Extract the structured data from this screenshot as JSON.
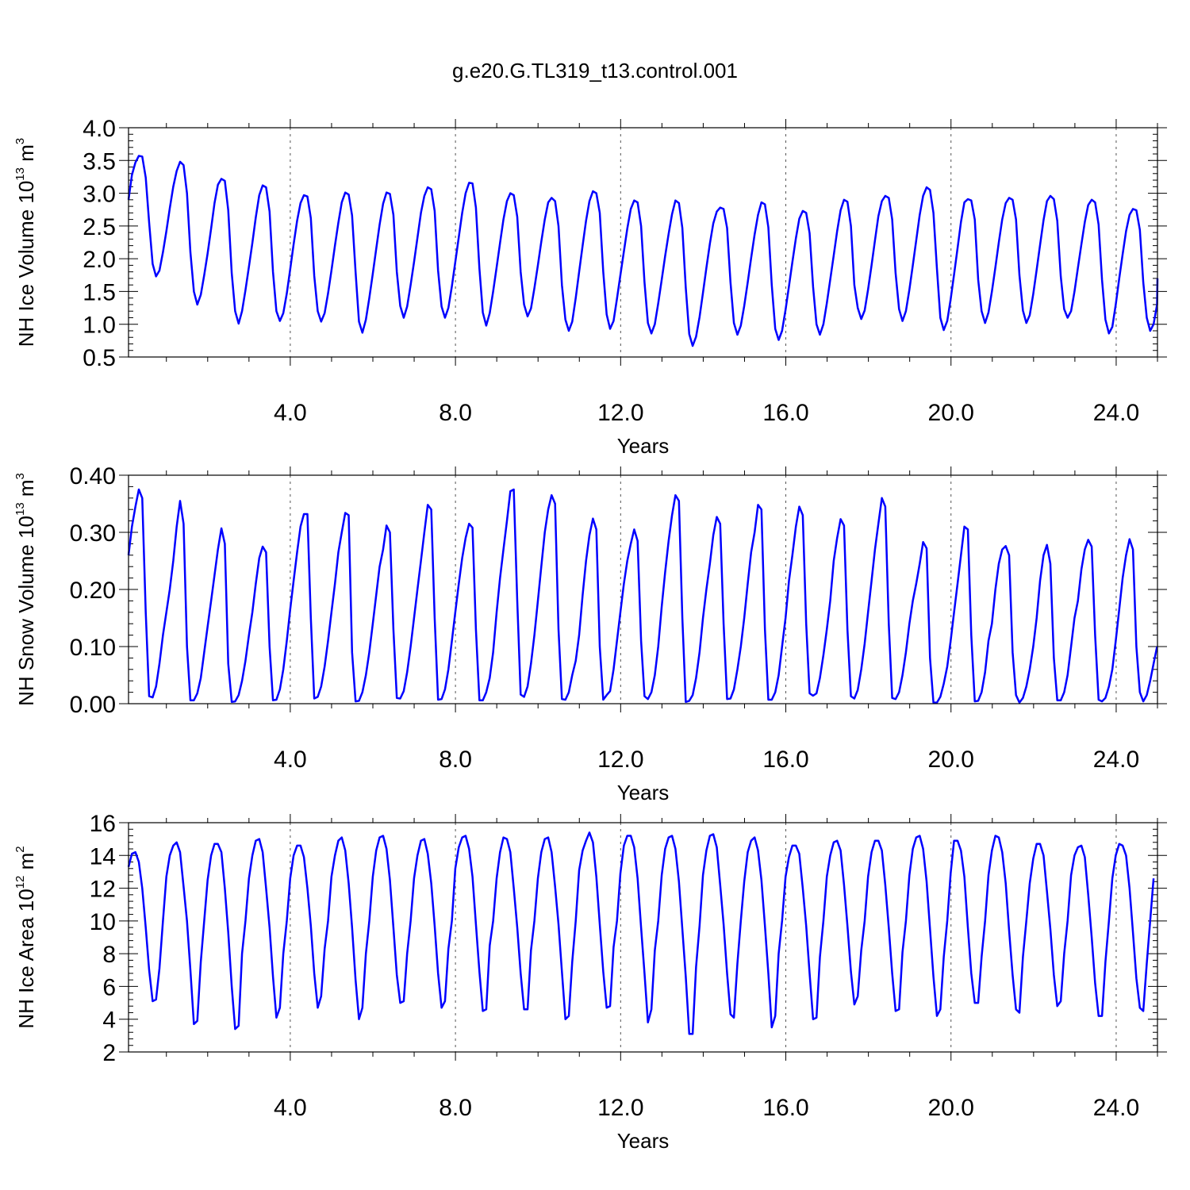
{
  "title": "g.e20.G.TL319_t13.control.001",
  "chart_data": [
    {
      "type": "line",
      "ylabel": {
        "text": "NH Ice Volume 10",
        "exp": "13",
        "unit": " m",
        "unit_exp": "3"
      },
      "xlabel": "Years",
      "xlim": [
        0.083,
        25.0
      ],
      "ylim": [
        0.5,
        4.0
      ],
      "yticks": [
        "0.5",
        "1.0",
        "1.5",
        "2.0",
        "2.5",
        "3.0",
        "3.5",
        "4.0"
      ],
      "xticks": [
        "4.0",
        "8.0",
        "12.0",
        "16.0",
        "20.0",
        "24.0"
      ],
      "color": "#0000ff",
      "x_start": 0.083,
      "x_step": 0.0833,
      "values": [
        2.9,
        3.28,
        3.47,
        3.57,
        3.56,
        3.24,
        2.55,
        1.92,
        1.73,
        1.82,
        2.1,
        2.42,
        2.77,
        3.1,
        3.34,
        3.48,
        3.43,
        3.0,
        2.1,
        1.5,
        1.3,
        1.45,
        1.75,
        2.08,
        2.46,
        2.85,
        3.13,
        3.22,
        3.19,
        2.74,
        1.78,
        1.2,
        1.01,
        1.2,
        1.52,
        1.88,
        2.24,
        2.63,
        2.97,
        3.12,
        3.09,
        2.72,
        1.8,
        1.2,
        1.05,
        1.17,
        1.47,
        1.84,
        2.22,
        2.58,
        2.85,
        2.97,
        2.95,
        2.62,
        1.74,
        1.2,
        1.04,
        1.17,
        1.47,
        1.82,
        2.2,
        2.55,
        2.86,
        3.01,
        2.98,
        2.66,
        1.8,
        1.04,
        0.87,
        1.07,
        1.4,
        1.77,
        2.15,
        2.52,
        2.84,
        3.01,
        2.99,
        2.67,
        1.8,
        1.28,
        1.1,
        1.27,
        1.6,
        1.95,
        2.32,
        2.7,
        2.96,
        3.09,
        3.06,
        2.73,
        1.82,
        1.27,
        1.1,
        1.25,
        1.58,
        1.95,
        2.33,
        2.7,
        3.0,
        3.16,
        3.15,
        2.78,
        1.85,
        1.18,
        0.98,
        1.17,
        1.5,
        1.87,
        2.24,
        2.6,
        2.88,
        3.0,
        2.97,
        2.64,
        1.8,
        1.3,
        1.12,
        1.24,
        1.55,
        1.9,
        2.26,
        2.6,
        2.86,
        2.93,
        2.88,
        2.5,
        1.6,
        1.07,
        0.9,
        1.04,
        1.4,
        1.8,
        2.2,
        2.58,
        2.88,
        3.03,
        3.0,
        2.7,
        1.8,
        1.15,
        0.93,
        1.05,
        1.39,
        1.75,
        2.11,
        2.46,
        2.76,
        2.89,
        2.86,
        2.5,
        1.64,
        1.02,
        0.86,
        1.0,
        1.32,
        1.68,
        2.04,
        2.38,
        2.68,
        2.89,
        2.85,
        2.47,
        1.56,
        0.85,
        0.67,
        0.81,
        1.11,
        1.48,
        1.86,
        2.23,
        2.54,
        2.72,
        2.78,
        2.76,
        2.47,
        1.64,
        1.02,
        0.84,
        0.98,
        1.28,
        1.64,
        2.01,
        2.37,
        2.67,
        2.86,
        2.83,
        2.48,
        1.6,
        0.93,
        0.76,
        0.9,
        1.22,
        1.58,
        1.95,
        2.31,
        2.61,
        2.73,
        2.7,
        2.39,
        1.57,
        1.0,
        0.84,
        1.0,
        1.32,
        1.68,
        2.05,
        2.42,
        2.74,
        2.9,
        2.87,
        2.5,
        1.6,
        1.25,
        1.08,
        1.21,
        1.53,
        1.9,
        2.28,
        2.65,
        2.88,
        2.96,
        2.93,
        2.6,
        1.78,
        1.23,
        1.05,
        1.2,
        1.53,
        1.9,
        2.28,
        2.67,
        2.96,
        3.09,
        3.05,
        2.7,
        1.85,
        1.1,
        0.91,
        1.05,
        1.38,
        1.76,
        2.16,
        2.56,
        2.86,
        2.91,
        2.89,
        2.6,
        1.68,
        1.2,
        1.02,
        1.18,
        1.5,
        1.87,
        2.25,
        2.6,
        2.85,
        2.93,
        2.9,
        2.6,
        1.75,
        1.21,
        1.02,
        1.14,
        1.46,
        1.83,
        2.21,
        2.59,
        2.88,
        2.96,
        2.91,
        2.58,
        1.73,
        1.23,
        1.1,
        1.2,
        1.5,
        1.86,
        2.22,
        2.56,
        2.82,
        2.9,
        2.86,
        2.52,
        1.68,
        1.07,
        0.86,
        0.96,
        1.3,
        1.7,
        2.07,
        2.42,
        2.67,
        2.76,
        2.74,
        2.44,
        1.64,
        1.1,
        0.9,
        1.0,
        1.3,
        1.7
      ]
    },
    {
      "type": "line",
      "ylabel": {
        "text": "NH Snow Volume 10",
        "exp": "13",
        "unit": " m",
        "unit_exp": "3"
      },
      "xlabel": "Years",
      "xlim": [
        0.083,
        25.0
      ],
      "ylim": [
        0.0,
        0.4
      ],
      "yticks": [
        "0.00",
        "0.10",
        "0.20",
        "0.30",
        "0.40"
      ],
      "xticks": [
        "4.0",
        "8.0",
        "12.0",
        "16.0",
        "20.0",
        "24.0"
      ],
      "color": "#0000ff",
      "x_start": 0.083,
      "x_step": 0.0833,
      "values": [
        0.26,
        0.31,
        0.345,
        0.375,
        0.36,
        0.16,
        0.013,
        0.011,
        0.03,
        0.07,
        0.12,
        0.16,
        0.2,
        0.25,
        0.31,
        0.355,
        0.315,
        0.1,
        0.006,
        0.006,
        0.018,
        0.045,
        0.09,
        0.135,
        0.18,
        0.225,
        0.27,
        0.307,
        0.28,
        0.07,
        0.003,
        0.004,
        0.015,
        0.04,
        0.075,
        0.12,
        0.16,
        0.21,
        0.255,
        0.275,
        0.265,
        0.1,
        0.006,
        0.007,
        0.025,
        0.06,
        0.11,
        0.165,
        0.215,
        0.265,
        0.31,
        0.332,
        0.332,
        0.15,
        0.009,
        0.012,
        0.03,
        0.065,
        0.11,
        0.16,
        0.21,
        0.265,
        0.3,
        0.334,
        0.33,
        0.09,
        0.004,
        0.005,
        0.02,
        0.05,
        0.09,
        0.14,
        0.19,
        0.24,
        0.27,
        0.312,
        0.3,
        0.13,
        0.01,
        0.009,
        0.022,
        0.055,
        0.1,
        0.15,
        0.2,
        0.25,
        0.3,
        0.348,
        0.34,
        0.15,
        0.007,
        0.008,
        0.025,
        0.06,
        0.11,
        0.16,
        0.21,
        0.255,
        0.29,
        0.315,
        0.308,
        0.13,
        0.006,
        0.006,
        0.02,
        0.045,
        0.09,
        0.16,
        0.22,
        0.27,
        0.32,
        0.372,
        0.375,
        0.18,
        0.016,
        0.012,
        0.03,
        0.07,
        0.12,
        0.18,
        0.24,
        0.3,
        0.34,
        0.365,
        0.35,
        0.13,
        0.008,
        0.007,
        0.02,
        0.05,
        0.075,
        0.12,
        0.19,
        0.25,
        0.295,
        0.324,
        0.305,
        0.1,
        0.007,
        0.015,
        0.022,
        0.06,
        0.11,
        0.16,
        0.21,
        0.25,
        0.28,
        0.305,
        0.285,
        0.11,
        0.013,
        0.008,
        0.02,
        0.05,
        0.1,
        0.17,
        0.23,
        0.285,
        0.33,
        0.365,
        0.355,
        0.15,
        0.003,
        0.005,
        0.015,
        0.045,
        0.09,
        0.15,
        0.2,
        0.245,
        0.295,
        0.327,
        0.315,
        0.14,
        0.008,
        0.009,
        0.025,
        0.06,
        0.1,
        0.15,
        0.21,
        0.265,
        0.3,
        0.348,
        0.34,
        0.13,
        0.007,
        0.007,
        0.02,
        0.05,
        0.1,
        0.15,
        0.215,
        0.26,
        0.31,
        0.345,
        0.33,
        0.14,
        0.018,
        0.014,
        0.018,
        0.045,
        0.085,
        0.13,
        0.18,
        0.25,
        0.29,
        0.323,
        0.312,
        0.13,
        0.013,
        0.009,
        0.024,
        0.06,
        0.105,
        0.16,
        0.215,
        0.27,
        0.315,
        0.36,
        0.345,
        0.14,
        0.01,
        0.008,
        0.02,
        0.05,
        0.09,
        0.14,
        0.18,
        0.21,
        0.245,
        0.283,
        0.272,
        0.08,
        0.002,
        0.002,
        0.012,
        0.035,
        0.065,
        0.11,
        0.16,
        0.21,
        0.26,
        0.31,
        0.305,
        0.12,
        0.004,
        0.005,
        0.02,
        0.055,
        0.11,
        0.14,
        0.2,
        0.245,
        0.27,
        0.276,
        0.26,
        0.09,
        0.015,
        0.002,
        0.01,
        0.03,
        0.06,
        0.1,
        0.15,
        0.215,
        0.26,
        0.278,
        0.245,
        0.08,
        0.006,
        0.006,
        0.02,
        0.05,
        0.1,
        0.15,
        0.18,
        0.235,
        0.27,
        0.287,
        0.275,
        0.12,
        0.007,
        0.004,
        0.01,
        0.03,
        0.06,
        0.11,
        0.165,
        0.22,
        0.26,
        0.288,
        0.27,
        0.1,
        0.02,
        0.004,
        0.015,
        0.04,
        0.07,
        0.1
      ]
    },
    {
      "type": "line",
      "ylabel": {
        "text": "NH Ice Area 10",
        "exp": "12",
        "unit": " m",
        "unit_exp": "2"
      },
      "xlabel": "Years",
      "xlim": [
        0.083,
        25.0
      ],
      "ylim": [
        2,
        16
      ],
      "yticks": [
        "2",
        "4",
        "6",
        "8",
        "10",
        "12",
        "14",
        "16"
      ],
      "xticks": [
        "4.0",
        "8.0",
        "12.0",
        "16.0",
        "20.0",
        "24.0"
      ],
      "color": "#0000ff",
      "x_start": 0.083,
      "x_step": 0.0833,
      "values": [
        13.3,
        14.1,
        14.2,
        13.6,
        12.0,
        9.6,
        7.0,
        5.1,
        5.2,
        7.1,
        10.0,
        12.7,
        14.0,
        14.6,
        14.8,
        14.2,
        12.1,
        10.0,
        7.0,
        3.7,
        3.9,
        7.5,
        10.0,
        12.5,
        14.0,
        14.7,
        14.7,
        14.2,
        12.0,
        9.3,
        6.0,
        3.4,
        3.6,
        8.0,
        10.0,
        12.6,
        14.0,
        14.9,
        15.0,
        14.2,
        12.0,
        9.6,
        6.6,
        4.1,
        4.7,
        8.0,
        10.0,
        12.6,
        14.0,
        14.6,
        14.6,
        13.9,
        12.0,
        9.7,
        6.8,
        4.7,
        5.4,
        8.3,
        10.0,
        12.7,
        14.0,
        14.9,
        15.1,
        14.3,
        12.3,
        9.6,
        6.4,
        4.0,
        4.7,
        8.0,
        10.0,
        12.7,
        14.3,
        15.1,
        15.2,
        14.4,
        12.5,
        9.6,
        6.7,
        5.0,
        5.1,
        8.0,
        10.0,
        12.6,
        14.0,
        14.9,
        15.0,
        14.1,
        12.3,
        9.7,
        6.8,
        4.7,
        5.1,
        8.3,
        10.0,
        13.2,
        14.5,
        15.1,
        15.2,
        14.4,
        12.7,
        9.8,
        6.9,
        4.5,
        4.6,
        8.5,
        10.0,
        12.6,
        14.2,
        15.1,
        15.0,
        14.2,
        12.0,
        9.6,
        6.8,
        4.6,
        4.6,
        8.2,
        10.0,
        12.6,
        14.2,
        15.0,
        15.1,
        14.2,
        12.1,
        9.8,
        6.9,
        4.0,
        4.2,
        7.5,
        10.0,
        13.1,
        14.3,
        14.9,
        15.4,
        14.8,
        12.7,
        9.8,
        6.9,
        4.7,
        4.8,
        8.4,
        10.0,
        12.9,
        14.6,
        15.2,
        15.2,
        14.5,
        12.6,
        9.6,
        6.8,
        3.8,
        4.6,
        8.2,
        10.0,
        12.8,
        14.4,
        15.1,
        15.2,
        14.4,
        12.4,
        9.5,
        6.6,
        3.1,
        3.1,
        7.2,
        9.7,
        12.8,
        14.3,
        15.2,
        15.3,
        14.5,
        12.2,
        9.8,
        6.8,
        4.3,
        4.1,
        7.4,
        10.0,
        12.4,
        14.2,
        14.9,
        15.1,
        14.3,
        12.5,
        9.7,
        6.8,
        3.5,
        4.2,
        8.0,
        10.0,
        12.7,
        13.9,
        14.6,
        14.6,
        14.1,
        12.0,
        9.7,
        6.8,
        4.0,
        4.1,
        7.8,
        10.0,
        12.7,
        14.0,
        14.8,
        14.9,
        14.3,
        12.2,
        9.7,
        6.9,
        4.9,
        5.4,
        8.2,
        10.0,
        12.7,
        14.2,
        14.9,
        14.9,
        14.3,
        12.2,
        9.6,
        6.8,
        4.5,
        4.6,
        8.1,
        10.0,
        12.8,
        14.4,
        15.1,
        15.2,
        14.4,
        12.4,
        9.5,
        6.6,
        4.2,
        4.6,
        7.8,
        10.0,
        12.9,
        14.9,
        14.9,
        14.3,
        12.7,
        9.6,
        6.8,
        5.0,
        5.0,
        7.8,
        10.0,
        12.8,
        14.3,
        15.2,
        15.1,
        14.2,
        12.3,
        9.4,
        6.7,
        4.6,
        4.4,
        7.8,
        10.0,
        12.3,
        13.8,
        14.7,
        14.7,
        14.0,
        11.8,
        9.5,
        6.7,
        4.8,
        5.1,
        8.0,
        10.0,
        12.8,
        14.0,
        14.5,
        14.6,
        13.9,
        11.6,
        9.0,
        6.2,
        4.2,
        4.2,
        7.5,
        10.0,
        12.6,
        14.0,
        14.7,
        14.6,
        14.0,
        12.0,
        9.3,
        6.5,
        4.7,
        4.5,
        7.4,
        10.0,
        12.6
      ]
    }
  ]
}
